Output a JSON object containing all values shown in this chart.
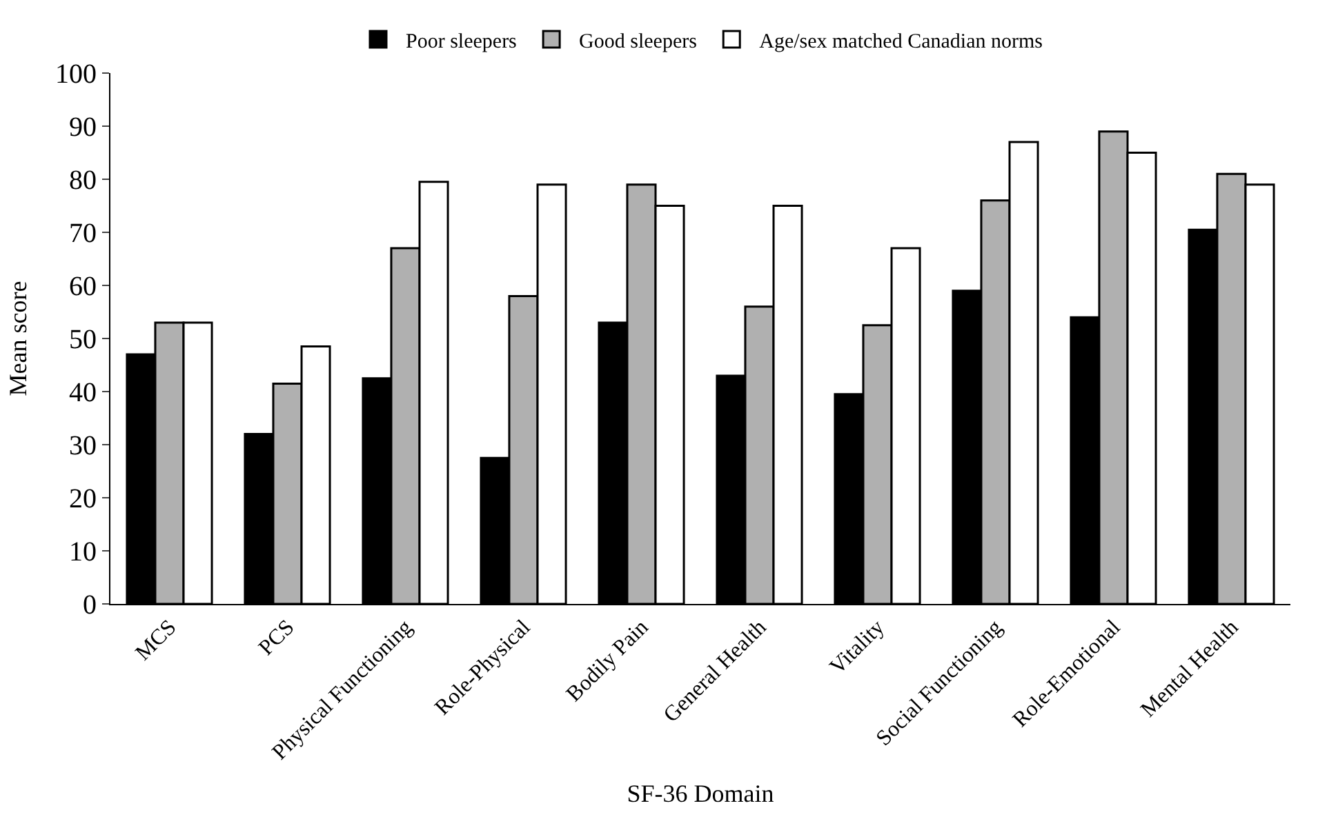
{
  "chart_data": {
    "type": "bar",
    "xlabel": "SF-36 Domain",
    "ylabel": "Mean score",
    "categories": [
      "MCS",
      "PCS",
      "Physical Functioning",
      "Role-Physical",
      "Bodily Pain",
      "General Health",
      "Vitality",
      "Social Functioning",
      "Role-Emotional",
      "Mental Health"
    ],
    "series": [
      {
        "name": "Poor sleepers",
        "color": "#000000",
        "values": [
          47,
          32,
          42.5,
          27.5,
          53,
          43,
          39.5,
          59,
          54,
          70.5
        ]
      },
      {
        "name": "Good sleepers",
        "color": "#b0b0b0",
        "values": [
          53,
          41.5,
          67,
          58,
          79,
          56,
          52.5,
          76,
          89,
          81
        ]
      },
      {
        "name": "Age/sex matched Canadian norms",
        "color": "#ffffff",
        "values": [
          53,
          48.5,
          79.5,
          79,
          75,
          75,
          67,
          87,
          85,
          79
        ]
      }
    ],
    "ylim": [
      0,
      100
    ],
    "yticks": [
      0,
      10,
      20,
      30,
      40,
      50,
      60,
      70,
      80,
      90,
      100
    ],
    "legend": "top"
  }
}
